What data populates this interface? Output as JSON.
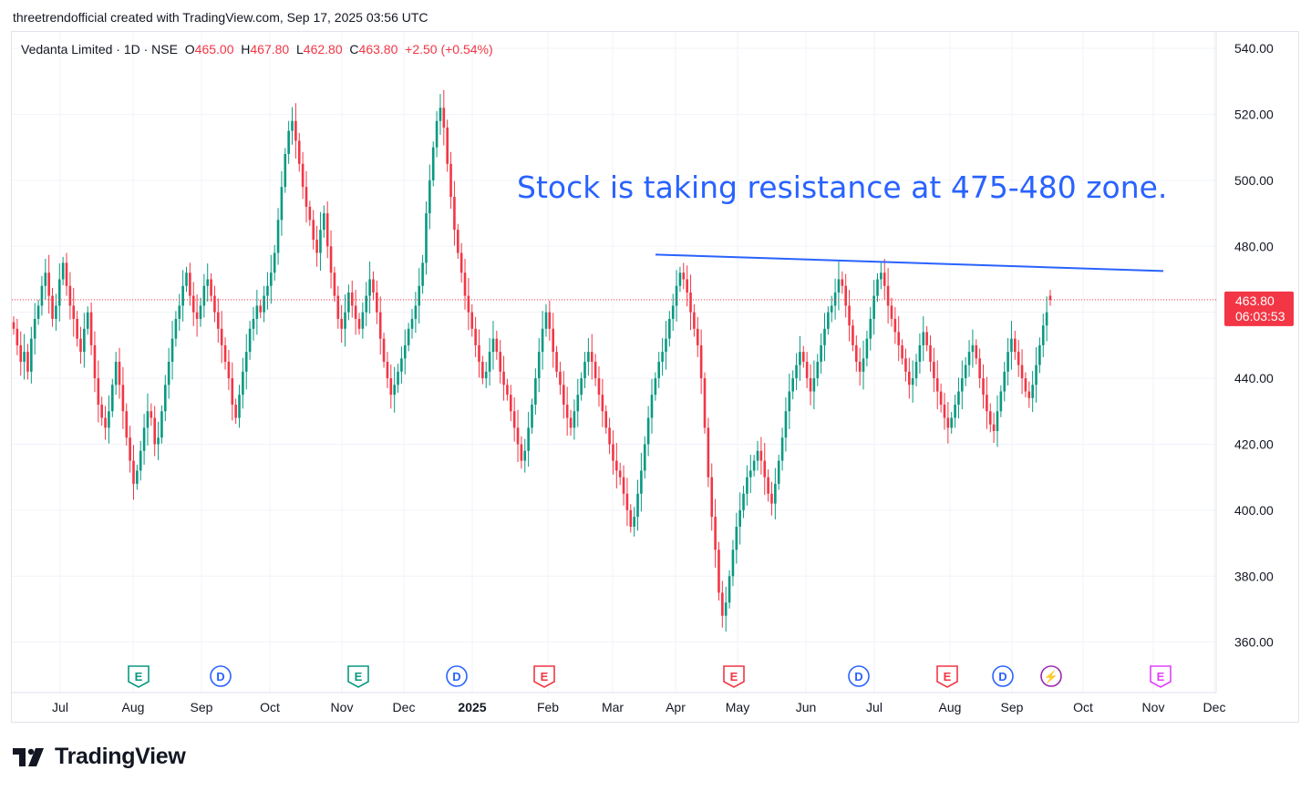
{
  "header": {
    "creator_line": "threetrendofficial created with TradingView.com, Sep 17, 2025 03:56 UTC"
  },
  "legend": {
    "symbol": "Vedanta Limited · 1D · NSE",
    "o_label": "O",
    "o_value": "465.00",
    "h_label": "H",
    "h_value": "467.80",
    "l_label": "L",
    "l_value": "462.80",
    "c_label": "C",
    "c_value": "463.80",
    "change": "+2.50 (+0.54%)"
  },
  "annotation": "Stock is taking resistance at 475-480 zone.",
  "price_badge": {
    "price": "463.80",
    "countdown": "06:03:53"
  },
  "brand": {
    "name": "TradingView"
  },
  "colors": {
    "up": "#089981",
    "down": "#f23645",
    "trendline": "#2962ff",
    "annotation": "#2962ff",
    "grid": "#f0f3fa"
  },
  "chart_data": {
    "type": "candlestick",
    "y_axis": {
      "ticks": [
        540,
        520,
        500,
        480,
        460,
        440,
        420,
        400,
        380,
        360
      ],
      "tick_labels": [
        "540.00",
        "520.00",
        "500.00",
        "480.00",
        "",
        "440.00",
        "420.00",
        "400.00",
        "380.00",
        "360.00"
      ],
      "range": [
        353,
        545
      ],
      "side": "right"
    },
    "x_axis": {
      "ticks": [
        "Jul",
        "Aug",
        "Sep",
        "Oct",
        "Nov",
        "Dec",
        "2025",
        "Feb",
        "Mar",
        "Apr",
        "May",
        "Jun",
        "Jul",
        "Aug",
        "Sep",
        "Oct",
        "Nov",
        "Dec"
      ],
      "bold": [
        "2025"
      ]
    },
    "last_price": 463.8,
    "trendline": {
      "from": {
        "x": "Mar 2025",
        "y": 477.5
      },
      "to": {
        "x": "Nov 2025",
        "y": 472.5
      }
    },
    "events": [
      {
        "month": "Aug",
        "type": "E",
        "color": "#089981"
      },
      {
        "month": "Sep",
        "type": "D",
        "color": "#2962ff"
      },
      {
        "month": "Nov",
        "type": "E",
        "color": "#089981"
      },
      {
        "month": "Dec",
        "type": "D",
        "color": "#2962ff"
      },
      {
        "month": "Feb",
        "type": "E",
        "color": "#f23645"
      },
      {
        "month": "May",
        "type": "E",
        "color": "#f23645"
      },
      {
        "month": "Jul",
        "type": "D",
        "color": "#2962ff"
      },
      {
        "month": "Aug",
        "type": "E",
        "color": "#f23645"
      },
      {
        "month": "Sep",
        "type": "D",
        "color": "#2962ff"
      },
      {
        "month": "Sep",
        "type": "⚡",
        "color": "#9c27b0"
      },
      {
        "month": "Nov",
        "type": "E",
        "color": "#e040fb"
      }
    ],
    "series": [
      {
        "name": "",
        "closes": [
          455,
          450,
          445,
          448,
          442,
          452,
          458,
          462,
          468,
          472,
          465,
          458,
          462,
          470,
          475,
          468,
          462,
          458,
          452,
          448,
          455,
          460,
          450,
          440,
          432,
          428,
          425,
          430,
          438,
          445,
          438,
          430,
          422,
          415,
          408,
          412,
          418,
          425,
          430,
          428,
          420,
          422,
          430,
          438,
          445,
          452,
          458,
          462,
          468,
          472,
          465,
          460,
          458,
          462,
          468,
          470,
          465,
          460,
          455,
          450,
          445,
          440,
          432,
          428,
          435,
          442,
          448,
          455,
          458,
          462,
          460,
          465,
          468,
          472,
          478,
          488,
          498,
          508,
          515,
          518,
          512,
          505,
          498,
          492,
          488,
          482,
          478,
          485,
          490,
          480,
          472,
          465,
          458,
          455,
          460,
          466,
          462,
          458,
          455,
          460,
          465,
          470,
          466,
          460,
          452,
          445,
          440,
          435,
          438,
          442,
          446,
          450,
          455,
          458,
          462,
          468,
          475,
          490,
          500,
          510,
          518,
          522,
          516,
          505,
          495,
          485,
          478,
          472,
          465,
          460,
          455,
          450,
          445,
          440,
          442,
          448,
          452,
          448,
          442,
          438,
          435,
          430,
          425,
          420,
          415,
          418,
          425,
          432,
          440,
          448,
          455,
          460,
          455,
          448,
          442,
          438,
          432,
          428,
          425,
          430,
          435,
          440,
          445,
          448,
          445,
          440,
          435,
          430,
          425,
          420,
          415,
          412,
          410,
          405,
          400,
          395,
          398,
          405,
          412,
          420,
          428,
          435,
          440,
          445,
          448,
          452,
          458,
          462,
          468,
          472,
          470,
          466,
          460,
          455,
          450,
          440,
          425,
          410,
          398,
          388,
          375,
          368,
          372,
          380,
          388,
          395,
          400,
          405,
          410,
          412,
          415,
          418,
          415,
          410,
          405,
          402,
          408,
          415,
          422,
          430,
          436,
          440,
          444,
          448,
          445,
          440,
          436,
          440,
          445,
          450,
          455,
          460,
          462,
          466,
          470,
          468,
          462,
          456,
          450,
          445,
          442,
          446,
          452,
          458,
          465,
          470,
          472,
          468,
          462,
          458,
          454,
          450,
          446,
          442,
          438,
          440,
          445,
          450,
          454,
          450,
          445,
          440,
          436,
          432,
          428,
          425,
          428,
          432,
          436,
          440,
          444,
          448,
          450,
          446,
          440,
          435,
          430,
          426,
          424,
          430,
          436,
          442,
          448,
          452,
          448,
          444,
          440,
          436,
          434,
          438,
          444,
          450,
          456,
          460,
          463.8
        ],
        "candle_count_note": ""
      }
    ]
  }
}
